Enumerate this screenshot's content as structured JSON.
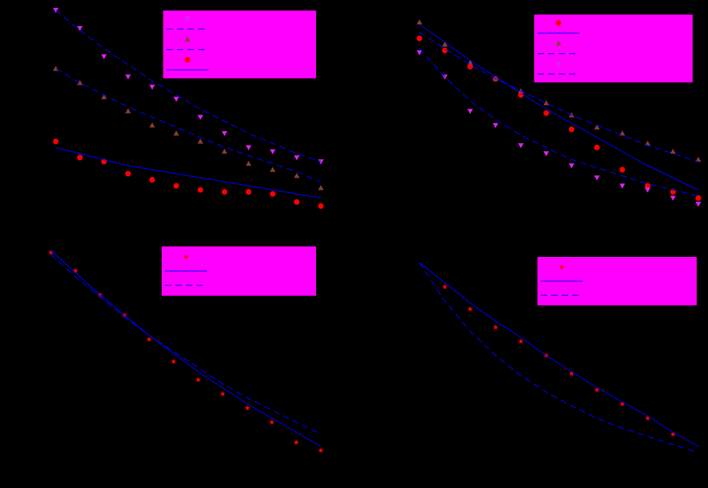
{
  "chart_data": [
    {
      "type": "scatter",
      "x": [
        0,
        1,
        2,
        3,
        4,
        5,
        6,
        7,
        8,
        9,
        10,
        11
      ],
      "xlim": [
        0,
        11
      ],
      "ylim": [
        0,
        10.2
      ],
      "series": [
        {
          "style": "marker",
          "marker": "triangle-down",
          "color": "#dd22ee",
          "values": [
            10.1,
            9.2,
            7.8,
            6.8,
            6.3,
            5.7,
            4.8,
            4.0,
            3.3,
            3.1,
            2.8,
            2.6
          ]
        },
        {
          "style": "line",
          "dash": true,
          "color": "#0000ff",
          "values": [
            10.1,
            9.1,
            8.2,
            7.4,
            6.6,
            5.9,
            5.2,
            4.6,
            4.0,
            3.5,
            3.0,
            2.6
          ]
        },
        {
          "style": "marker",
          "marker": "triangle-up",
          "color": "#8b3a3a",
          "values": [
            7.2,
            6.5,
            5.8,
            5.1,
            4.4,
            4.0,
            3.6,
            3.1,
            2.5,
            2.2,
            1.9,
            1.3
          ]
        },
        {
          "style": "line",
          "dash": true,
          "color": "#0000ff",
          "values": [
            7.2,
            6.5,
            5.9,
            5.3,
            4.8,
            4.3,
            3.8,
            3.3,
            2.9,
            2.5,
            2.1,
            1.6
          ]
        },
        {
          "style": "marker",
          "marker": "circle",
          "color": "#ff0000",
          "values": [
            3.6,
            2.8,
            2.6,
            2.0,
            1.7,
            1.4,
            1.2,
            1.1,
            1.1,
            1.0,
            0.6,
            0.4
          ]
        },
        {
          "style": "line",
          "dash": false,
          "color": "#0000ff",
          "values": [
            3.3,
            3.0,
            2.7,
            2.4,
            2.2,
            2.0,
            1.8,
            1.6,
            1.4,
            1.2,
            1.0,
            0.8
          ]
        }
      ]
    },
    {
      "type": "scatter",
      "x": [
        0,
        1,
        2,
        3,
        4,
        5,
        6,
        7,
        8,
        9,
        10,
        11
      ],
      "xlim": [
        0,
        11
      ],
      "ylim": [
        0,
        10.2
      ],
      "series": [
        {
          "style": "marker",
          "marker": "circle",
          "color": "#ff0000",
          "values": [
            8.7,
            8.1,
            7.3,
            6.7,
            5.9,
            5.0,
            4.2,
            3.3,
            2.2,
            1.4,
            1.1,
            0.8
          ]
        },
        {
          "style": "line",
          "dash": false,
          "color": "#0000ff",
          "values": [
            9.4,
            8.5,
            7.6,
            6.8,
            6.0,
            5.2,
            4.5,
            3.8,
            3.1,
            2.4,
            1.8,
            1.2
          ]
        },
        {
          "style": "marker",
          "marker": "triangle-up",
          "color": "#8b3a3a",
          "values": [
            9.5,
            8.4,
            7.5,
            6.7,
            6.1,
            5.5,
            4.9,
            4.3,
            4.0,
            3.5,
            3.1,
            2.7
          ]
        },
        {
          "style": "line",
          "dash": true,
          "color": "#0000ff",
          "values": [
            9.0,
            8.2,
            7.4,
            6.7,
            6.1,
            5.5,
            4.9,
            4.4,
            3.9,
            3.4,
            3.0,
            2.6
          ]
        },
        {
          "style": "marker",
          "marker": "triangle-down",
          "color": "#dd22ee",
          "values": [
            8.0,
            6.8,
            5.1,
            4.4,
            3.4,
            3.0,
            2.4,
            1.8,
            1.4,
            1.2,
            0.8,
            0.5
          ]
        },
        {
          "style": "line",
          "dash": true,
          "color": "#0000ff",
          "values": [
            8.2,
            6.8,
            5.6,
            4.7,
            3.9,
            3.3,
            2.7,
            2.3,
            1.9,
            1.5,
            1.2,
            0.9
          ]
        }
      ]
    },
    {
      "type": "scatter",
      "x": [
        0,
        1,
        2,
        3,
        4,
        5,
        6,
        7,
        8,
        9,
        10,
        11
      ],
      "xlim": [
        0,
        11
      ],
      "ylim": [
        0,
        10.2
      ],
      "series": [
        {
          "style": "marker",
          "marker": "star",
          "color": "#ff0000",
          "values": [
            10.1,
            9.2,
            8.0,
            7.0,
            5.8,
            4.7,
            3.8,
            3.1,
            2.4,
            1.7,
            0.7,
            0.3
          ]
        },
        {
          "style": "line",
          "dash": false,
          "color": "#0000ff",
          "values": [
            10.2,
            9.1,
            8.0,
            7.0,
            6.0,
            5.1,
            4.2,
            3.4,
            2.6,
            1.9,
            1.2,
            0.5
          ]
        },
        {
          "style": "line",
          "dash": true,
          "color": "#0000ff",
          "values": [
            10.0,
            8.9,
            7.9,
            6.9,
            6.0,
            5.2,
            4.4,
            3.6,
            2.9,
            2.3,
            1.7,
            1.1
          ]
        }
      ]
    },
    {
      "type": "scatter",
      "x": [
        0,
        1,
        2,
        3,
        4,
        5,
        6,
        7,
        8,
        9,
        10,
        11
      ],
      "xlim": [
        0,
        11
      ],
      "ylim": [
        0,
        10.2
      ],
      "series": [
        {
          "style": "marker",
          "marker": "star",
          "color": "#ff0000",
          "values": [
            null,
            8.4,
            7.3,
            6.4,
            5.7,
            5.0,
            4.1,
            3.3,
            2.6,
            1.9,
            1.1,
            null
          ]
        },
        {
          "style": "line",
          "dash": false,
          "color": "#0000ff",
          "values": [
            9.6,
            8.6,
            7.6,
            6.7,
            5.9,
            5.0,
            4.2,
            3.4,
            2.7,
            2.0,
            1.2,
            0.5
          ]
        },
        {
          "style": "line",
          "dash": true,
          "color": "#0000ff",
          "values": [
            9.6,
            7.7,
            6.2,
            5.0,
            4.0,
            3.2,
            2.5,
            1.9,
            1.4,
            1.0,
            0.6,
            0.2
          ]
        }
      ]
    }
  ]
}
